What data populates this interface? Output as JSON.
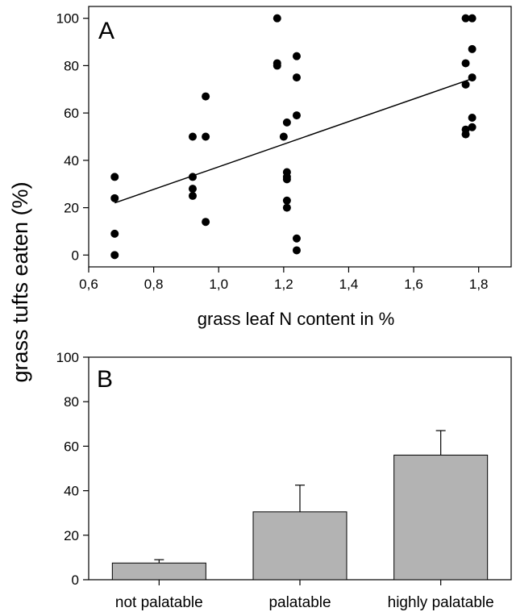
{
  "shared_ylabel": "grass tufts eaten (%)",
  "chart_data": [
    {
      "type": "scatter",
      "panel_label": "A",
      "xlabel": "grass leaf N content in %",
      "ylabel": "",
      "xlim": [
        0.6,
        1.9
      ],
      "ylim": [
        -5,
        105
      ],
      "xticks": [
        "0,6",
        "0,8",
        "1,0",
        "1,2",
        "1,4",
        "1,6",
        "1,8"
      ],
      "xtick_values": [
        0.6,
        0.8,
        1.0,
        1.2,
        1.4,
        1.6,
        1.8
      ],
      "yticks": [
        "0",
        "20",
        "40",
        "60",
        "80",
        "100"
      ],
      "ytick_values": [
        0,
        20,
        40,
        60,
        80,
        100
      ],
      "grid": false,
      "points": [
        {
          "x": 0.68,
          "y": 0
        },
        {
          "x": 0.68,
          "y": 9
        },
        {
          "x": 0.68,
          "y": 24
        },
        {
          "x": 0.68,
          "y": 33
        },
        {
          "x": 0.92,
          "y": 25
        },
        {
          "x": 0.92,
          "y": 28
        },
        {
          "x": 0.92,
          "y": 33
        },
        {
          "x": 0.92,
          "y": 50
        },
        {
          "x": 0.96,
          "y": 14
        },
        {
          "x": 0.96,
          "y": 50
        },
        {
          "x": 0.96,
          "y": 67
        },
        {
          "x": 1.18,
          "y": 100
        },
        {
          "x": 1.18,
          "y": 81
        },
        {
          "x": 1.18,
          "y": 80
        },
        {
          "x": 1.2,
          "y": 50
        },
        {
          "x": 1.21,
          "y": 56
        },
        {
          "x": 1.21,
          "y": 35
        },
        {
          "x": 1.21,
          "y": 33
        },
        {
          "x": 1.21,
          "y": 32
        },
        {
          "x": 1.21,
          "y": 23
        },
        {
          "x": 1.21,
          "y": 20
        },
        {
          "x": 1.24,
          "y": 84
        },
        {
          "x": 1.24,
          "y": 75
        },
        {
          "x": 1.24,
          "y": 59
        },
        {
          "x": 1.24,
          "y": 7
        },
        {
          "x": 1.24,
          "y": 2
        },
        {
          "x": 1.76,
          "y": 100
        },
        {
          "x": 1.76,
          "y": 81
        },
        {
          "x": 1.76,
          "y": 72
        },
        {
          "x": 1.76,
          "y": 53
        },
        {
          "x": 1.76,
          "y": 51
        },
        {
          "x": 1.78,
          "y": 100
        },
        {
          "x": 1.78,
          "y": 87
        },
        {
          "x": 1.78,
          "y": 75
        },
        {
          "x": 1.78,
          "y": 58
        },
        {
          "x": 1.78,
          "y": 54
        }
      ],
      "regression_line": {
        "x": [
          0.68,
          1.78
        ],
        "y": [
          22,
          74.5
        ]
      }
    },
    {
      "type": "bar",
      "panel_label": "B",
      "xlabel": "",
      "ylabel": "",
      "categories": [
        "not palatable",
        "palatable",
        "highly palatable"
      ],
      "values": [
        7.5,
        30.5,
        56
      ],
      "errors": [
        1.5,
        12,
        11
      ],
      "ylim": [
        0,
        100
      ],
      "yticks": [
        "0",
        "20",
        "40",
        "60",
        "80",
        "100"
      ],
      "ytick_values": [
        0,
        20,
        40,
        60,
        80,
        100
      ],
      "bar_color": "#b3b3b3",
      "grid": false
    }
  ]
}
